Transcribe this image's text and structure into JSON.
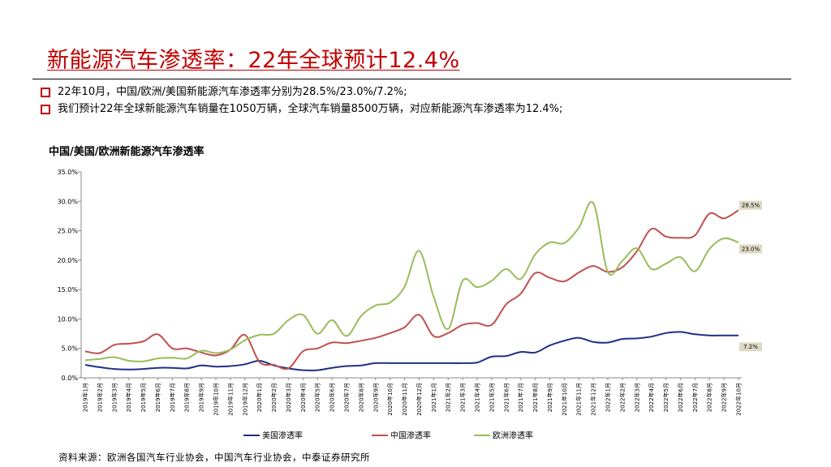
{
  "title": "新能源汽车渗透率：22年全球预计12.4%",
  "bullets": [
    "22年10月，中国/欧洲/美国新能源汽车渗透率分别为28.5%/23.0%/7.2%;",
    "我们预计22年全球新能源汽车销量在1050万辆，全球汽车销量8500万辆，对应新能源汽车渗透率为12.4%;"
  ],
  "colors": {
    "title": "#c00000",
    "bullet": "#c00000",
    "us": "#1f2f86",
    "china": "#c0504d",
    "europe": "#9bbb59"
  },
  "source": "资料来源：欧洲各国汽车行业协会，中国汽车行业协会，中泰证券研究所",
  "chart_data": {
    "type": "line",
    "title": "中国/美国/欧洲新能源汽车渗透率",
    "xlabel": "",
    "ylabel": "",
    "ylim": [
      0,
      35
    ],
    "yticks": [
      "0.0%",
      "5.0%",
      "10.0%",
      "15.0%",
      "20.0%",
      "25.0%",
      "30.0%",
      "35.0%"
    ],
    "grid": false,
    "legend_position": "bottom",
    "x": [
      "2019年1月",
      "2019年2月",
      "2019年3月",
      "2019年4月",
      "2019年5月",
      "2019年6月",
      "2019年7月",
      "2019年8月",
      "2019年9月",
      "2019年10月",
      "2019年11月",
      "2019年12月",
      "2020年1月",
      "2020年2月",
      "2020年3月",
      "2020年4月",
      "2020年5月",
      "2020年6月",
      "2020年7月",
      "2020年8月",
      "2020年9月",
      "2020年10月",
      "2020年11月",
      "2020年12月",
      "2021年1月",
      "2021年2月",
      "2021年3月",
      "2021年4月",
      "2021年5月",
      "2021年6月",
      "2021年7月",
      "2021年8月",
      "2021年9月",
      "2021年10月",
      "2021年11月",
      "2021年12月",
      "2022年1月",
      "2022年2月",
      "2022年3月",
      "2022年4月",
      "2022年5月",
      "2022年6月",
      "2022年7月",
      "2022年8月",
      "2022年9月",
      "2022年10月"
    ],
    "series": [
      {
        "name": "美国渗透率",
        "color": "#1f2f86",
        "end_label": "7.2%",
        "values": [
          2.2,
          1.8,
          1.5,
          1.4,
          1.5,
          1.7,
          1.7,
          1.6,
          2.1,
          1.9,
          2.0,
          2.3,
          2.9,
          2.1,
          1.6,
          1.3,
          1.3,
          1.7,
          2.0,
          2.1,
          2.5,
          2.5,
          2.5,
          2.5,
          2.5,
          2.5,
          2.5,
          2.6,
          3.6,
          3.7,
          4.4,
          4.3,
          5.5,
          6.3,
          6.8,
          6.1,
          6.0,
          6.6,
          6.7,
          7.0,
          7.6,
          7.8,
          7.4,
          7.2,
          7.2,
          7.2
        ]
      },
      {
        "name": "中国渗透率",
        "color": "#c0504d",
        "end_label": "28.5%",
        "values": [
          4.5,
          4.2,
          5.6,
          5.8,
          6.2,
          7.4,
          5.0,
          5.0,
          4.3,
          3.8,
          4.8,
          7.3,
          2.7,
          2.2,
          1.6,
          4.5,
          5.0,
          6.0,
          5.9,
          6.3,
          6.8,
          7.6,
          8.6,
          10.7,
          7.1,
          7.6,
          9.0,
          9.3,
          9.0,
          12.5,
          14.3,
          17.8,
          17.0,
          16.4,
          17.9,
          19.0,
          18.0,
          18.8,
          21.5,
          25.3,
          24.0,
          23.8,
          24.2,
          27.9,
          27.1,
          28.5
        ]
      },
      {
        "name": "欧洲渗透率",
        "color": "#9bbb59",
        "end_label": "23.0%",
        "values": [
          3.0,
          3.2,
          3.5,
          2.9,
          2.8,
          3.3,
          3.4,
          3.3,
          4.6,
          4.2,
          4.8,
          6.4,
          7.3,
          7.5,
          9.8,
          10.7,
          7.5,
          9.8,
          7.1,
          10.5,
          12.3,
          12.8,
          15.5,
          21.6,
          13.8,
          8.3,
          16.5,
          15.4,
          16.5,
          18.5,
          16.8,
          21.0,
          23.0,
          22.9,
          25.5,
          29.7,
          18.0,
          19.9,
          22.0,
          18.5,
          19.4,
          20.5,
          18.1,
          21.9,
          23.7,
          23.0
        ]
      }
    ]
  }
}
